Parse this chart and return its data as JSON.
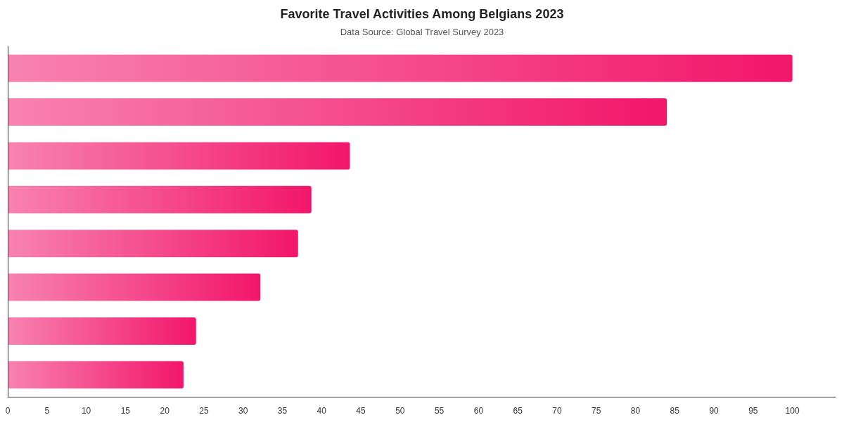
{
  "chart_data": {
    "type": "bar",
    "orientation": "horizontal",
    "title": "Favorite Travel Activities Among Belgians 2023",
    "subtitle": "Data Source: Global Travel Survey 2023",
    "categories": [
      null,
      null,
      null,
      null,
      null,
      null,
      null,
      null
    ],
    "values": [
      100,
      84,
      43.6,
      38.7,
      37,
      32.2,
      24,
      22.4
    ],
    "color": "#f2166a",
    "xlim": [
      0,
      105.5
    ],
    "xticks": [
      0,
      5,
      10,
      15,
      20,
      25,
      30,
      35,
      40,
      45,
      50,
      55,
      60,
      65,
      70,
      75,
      80,
      85,
      90,
      95,
      100
    ],
    "grid": false
  }
}
